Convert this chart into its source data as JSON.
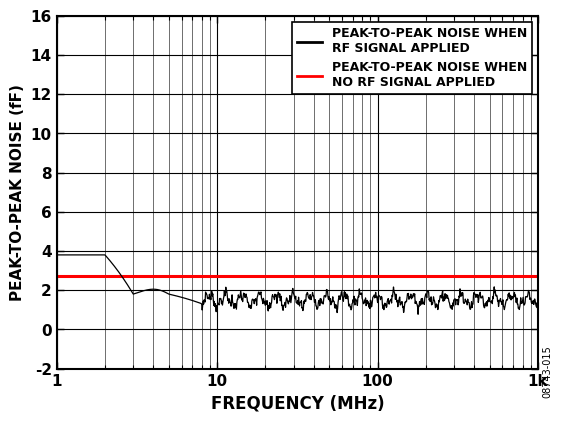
{
  "title": "",
  "xlabel": "FREQUENCY (MHz)",
  "ylabel": "PEAK-TO-PEAK NOISE (fF)",
  "xlim": [
    1,
    1000
  ],
  "ylim": [
    -2,
    16
  ],
  "yticks": [
    -2,
    0,
    2,
    4,
    6,
    8,
    10,
    12,
    14,
    16
  ],
  "red_line_y": 2.7,
  "legend_line1": "PEAK-TO-PEAK NOISE WHEN\nRF SIGNAL APPLIED",
  "legend_line2": "PEAK-TO-PEAK NOISE WHEN\nNO RF SIGNAL APPLIED",
  "line_color": "#000000",
  "red_color": "#ff0000",
  "watermark": "08743-015",
  "background_color": "#ffffff"
}
